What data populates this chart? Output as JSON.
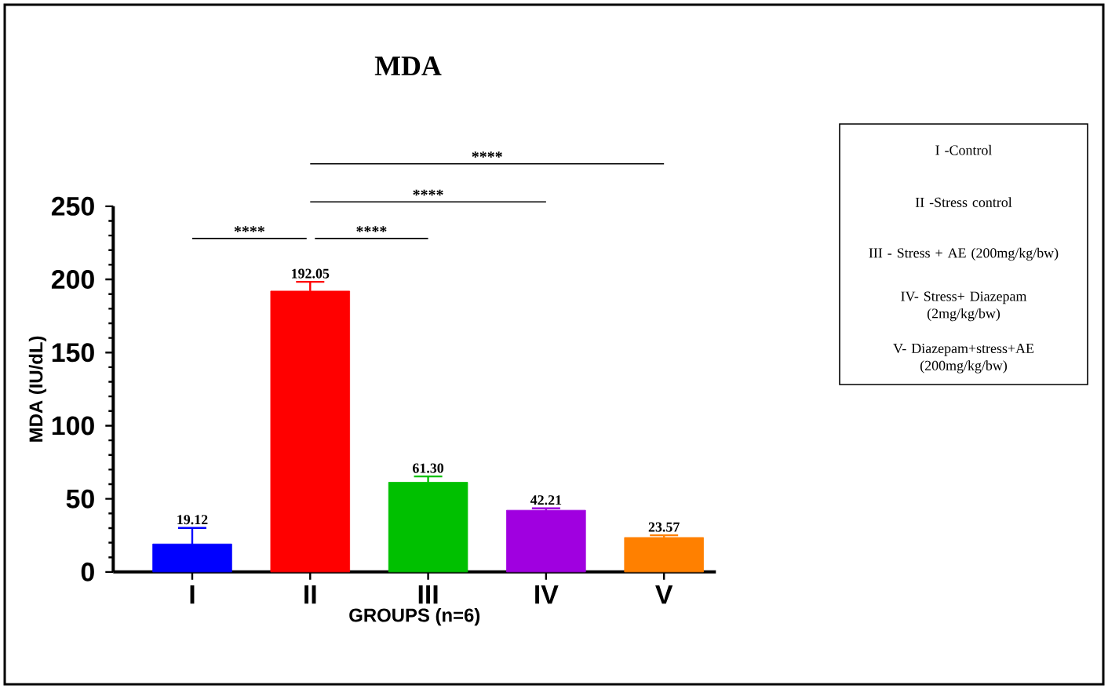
{
  "chart_data": {
    "type": "bar",
    "title": "MDA",
    "xlabel": "GROUPS (n=6)",
    "ylabel": "MDA (IU/dL)",
    "categories": [
      "I",
      "II",
      "III",
      "IV",
      "V"
    ],
    "values": [
      19.12,
      192.05,
      61.3,
      42.21,
      23.57
    ],
    "errors": [
      11,
      6.3,
      4,
      1.3,
      1.5
    ],
    "value_labels": [
      "19.12",
      "192.05",
      "61.30",
      "42.21",
      "23.57"
    ],
    "colors": [
      "#0000ff",
      "#ff0000",
      "#00c000",
      "#a000e0",
      "#ff8000"
    ],
    "ylim": [
      0,
      250
    ],
    "yticks": [
      0,
      50,
      100,
      150,
      200,
      250
    ],
    "grid": false,
    "annotations": [
      "****",
      "****",
      "****",
      "****",
      "I -Control",
      "II -Stress control",
      "III - Stress + AE (200mg/kg/bw)",
      "IV- Stress+ Diazepam (2mg/kg/bw)",
      "V- Diazepam+stress+AE (200mg/kg/bw)"
    ]
  }
}
